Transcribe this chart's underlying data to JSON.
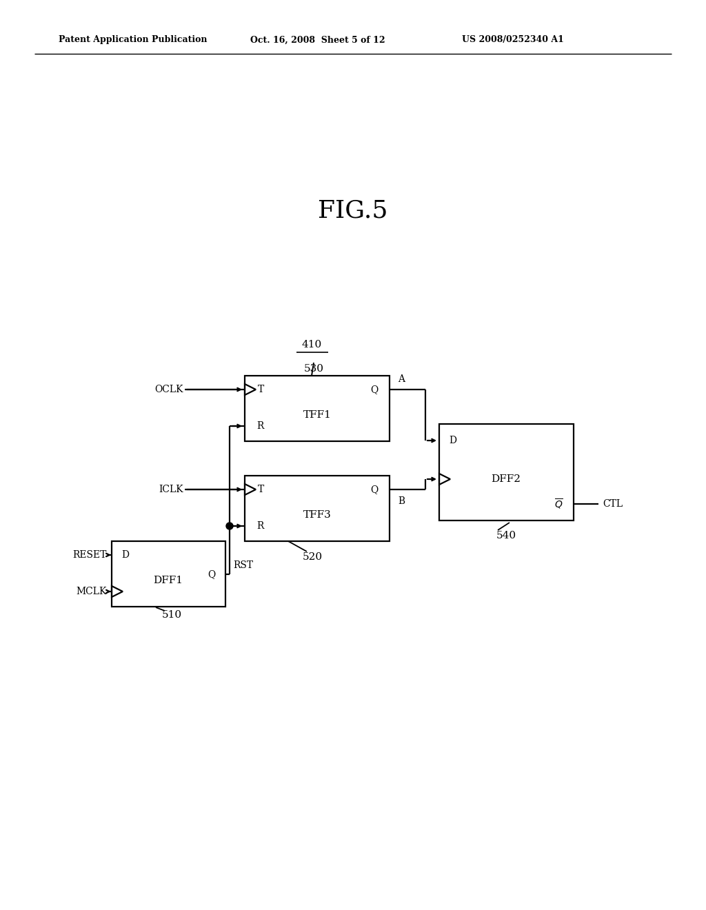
{
  "header_left": "Patent Application Publication",
  "header_mid": "Oct. 16, 2008  Sheet 5 of 12",
  "header_right": "US 2008/0252340 A1",
  "fig_title": "FIG.5",
  "label_410": "410",
  "label_510": "510",
  "label_520": "520",
  "label_530": "530",
  "label_540": "540",
  "tff1_label": "TFF1",
  "tff3_label": "TFF3",
  "dff1_label": "DFF1",
  "dff2_label": "DFF2",
  "bg_color": "#ffffff",
  "line_color": "#000000",
  "header_fontsize": 9,
  "title_fontsize": 26,
  "label_fontsize": 11,
  "port_fontsize": 10,
  "signal_fontsize": 10
}
